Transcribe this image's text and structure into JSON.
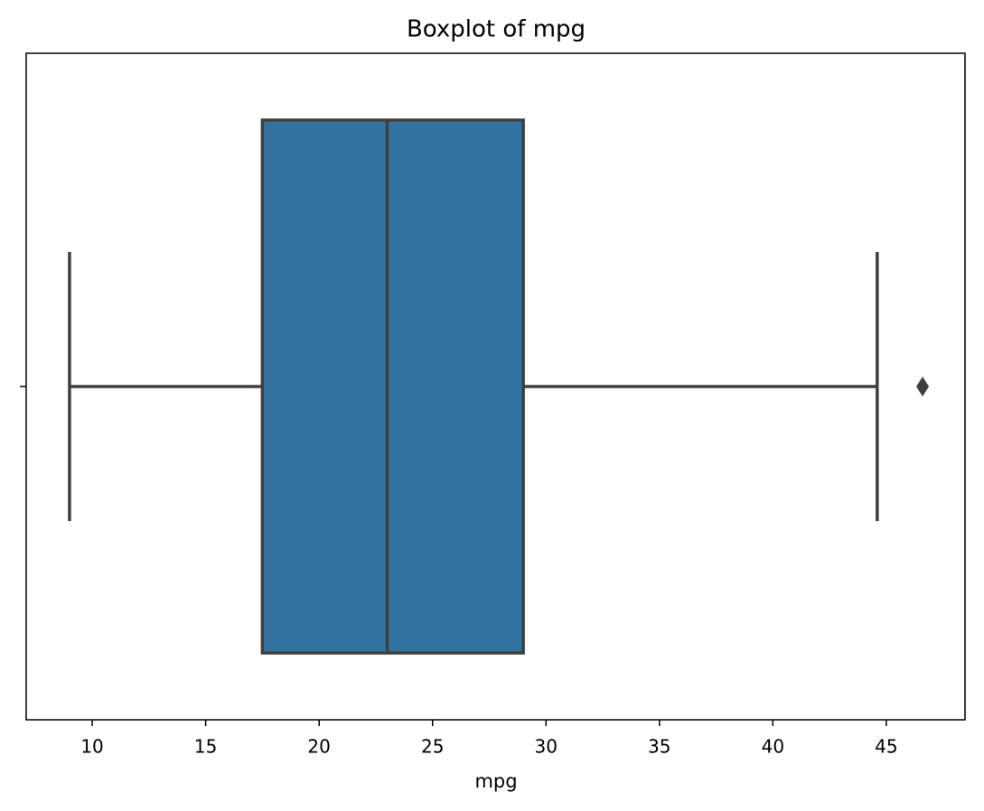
{
  "chart_data": {
    "type": "box",
    "title": "Boxplot of mpg",
    "xlabel": "mpg",
    "boxes": [
      {
        "whislo": 9,
        "q1": 17.5,
        "med": 23,
        "q3": 29,
        "whishi": 44.6,
        "fliers": [
          46.6
        ]
      }
    ],
    "color": "#3274a1",
    "line_color": "#3f3f3f",
    "xlim": [
      7.09,
      48.47
    ],
    "xticks": [
      10,
      15,
      20,
      25,
      30,
      35,
      40,
      45
    ]
  }
}
